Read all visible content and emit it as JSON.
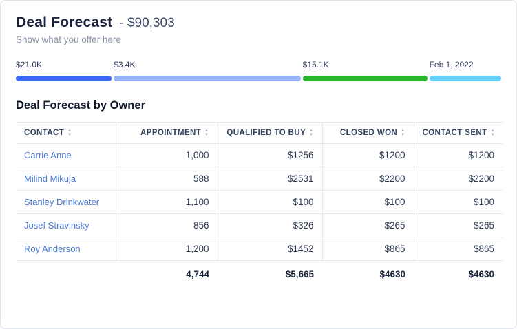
{
  "header": {
    "title": "Deal Forecast",
    "amount": "- $90,303",
    "subtitle": "Show what you offer here"
  },
  "progress": {
    "segments": [
      {
        "label": "$21.0K",
        "color": "#3d68f1",
        "width_pct": 20
      },
      {
        "label": "$3.4K",
        "color": "#9ab4f8",
        "width_pct": 39
      },
      {
        "label": "$15.1K",
        "color": "#2cb42c",
        "width_pct": 26
      },
      {
        "label": "Feb 1, 2022",
        "color": "#6bd1f8",
        "width_pct": 15
      }
    ]
  },
  "table": {
    "title": "Deal Forecast by Owner",
    "columns": [
      {
        "label": "CONTACT"
      },
      {
        "label": "APPOINTMENT"
      },
      {
        "label": "QUALIFIED TO BUY"
      },
      {
        "label": "CLOSED WON"
      },
      {
        "label": "CONTACT SENT"
      }
    ],
    "rows": [
      {
        "contact": "Carrie Anne",
        "appointment": "1,000",
        "qualified": "$1256",
        "closed_won": "$1200",
        "contact_sent": "$1200"
      },
      {
        "contact": "Milind Mikuja",
        "appointment": "588",
        "qualified": "$2531",
        "closed_won": "$2200",
        "contact_sent": "$2200"
      },
      {
        "contact": "Stanley Drinkwater",
        "appointment": "1,100",
        "qualified": "$100",
        "closed_won": "$100",
        "contact_sent": "$100"
      },
      {
        "contact": "Josef Stravinsky",
        "appointment": "856",
        "qualified": "$326",
        "closed_won": "$265",
        "contact_sent": "$265"
      },
      {
        "contact": "Roy Anderson",
        "appointment": "1,200",
        "qualified": "$1452",
        "closed_won": "$865",
        "contact_sent": "$865"
      }
    ],
    "totals": {
      "appointment": "4,744",
      "qualified": "$5,665",
      "closed_won": "$4630",
      "contact_sent": "$4630"
    }
  }
}
